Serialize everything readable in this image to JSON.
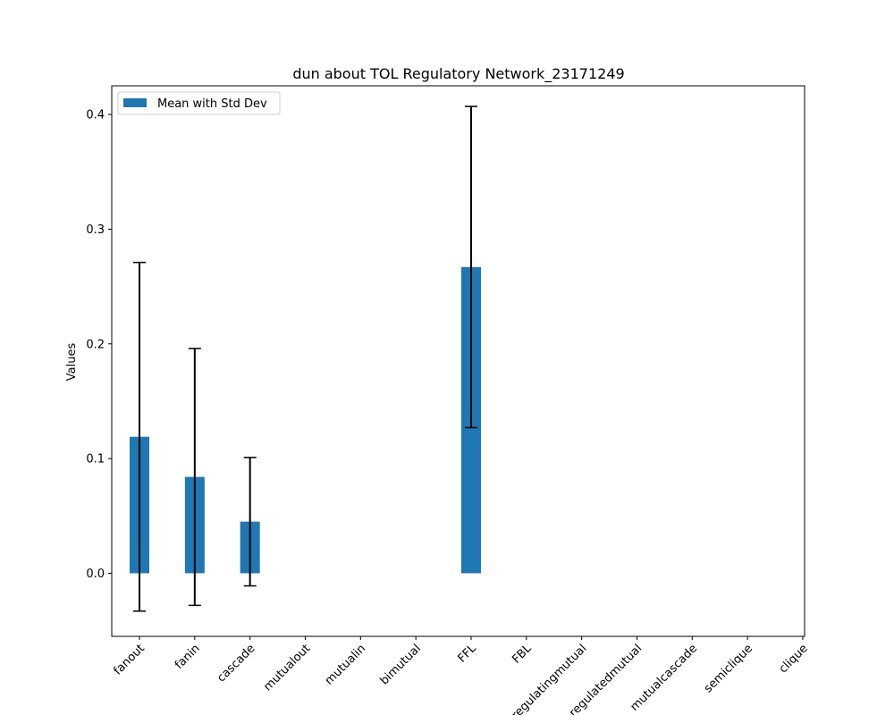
{
  "chart_data": {
    "type": "bar",
    "title": "dun about TOL Regulatory Network_23171249",
    "xlabel": "",
    "ylabel": "Values",
    "categories": [
      "fanout",
      "fanin",
      "cascade",
      "mutualout",
      "mutualin",
      "bimutual",
      "FFL",
      "FBL",
      "regulatingmutual",
      "regulatedmutual",
      "mutualcascade",
      "semiclique",
      "clique"
    ],
    "series": [
      {
        "name": "Mean with Std Dev",
        "values": [
          0.119,
          0.084,
          0.045,
          0,
          0,
          0,
          0.267,
          0,
          0,
          0,
          0,
          0,
          0
        ],
        "errors": [
          0.152,
          0.112,
          0.056,
          0,
          0,
          0,
          0.14,
          0,
          0,
          0,
          0,
          0,
          0
        ],
        "color": "#1f77b4"
      }
    ],
    "ylim": [
      -0.055,
      0.425
    ],
    "yticks": [
      0.0,
      0.1,
      0.2,
      0.3,
      0.4
    ],
    "ytick_labels": [
      "0.0",
      "0.1",
      "0.2",
      "0.3",
      "0.4"
    ],
    "legend": "top-left",
    "grid": false
  }
}
